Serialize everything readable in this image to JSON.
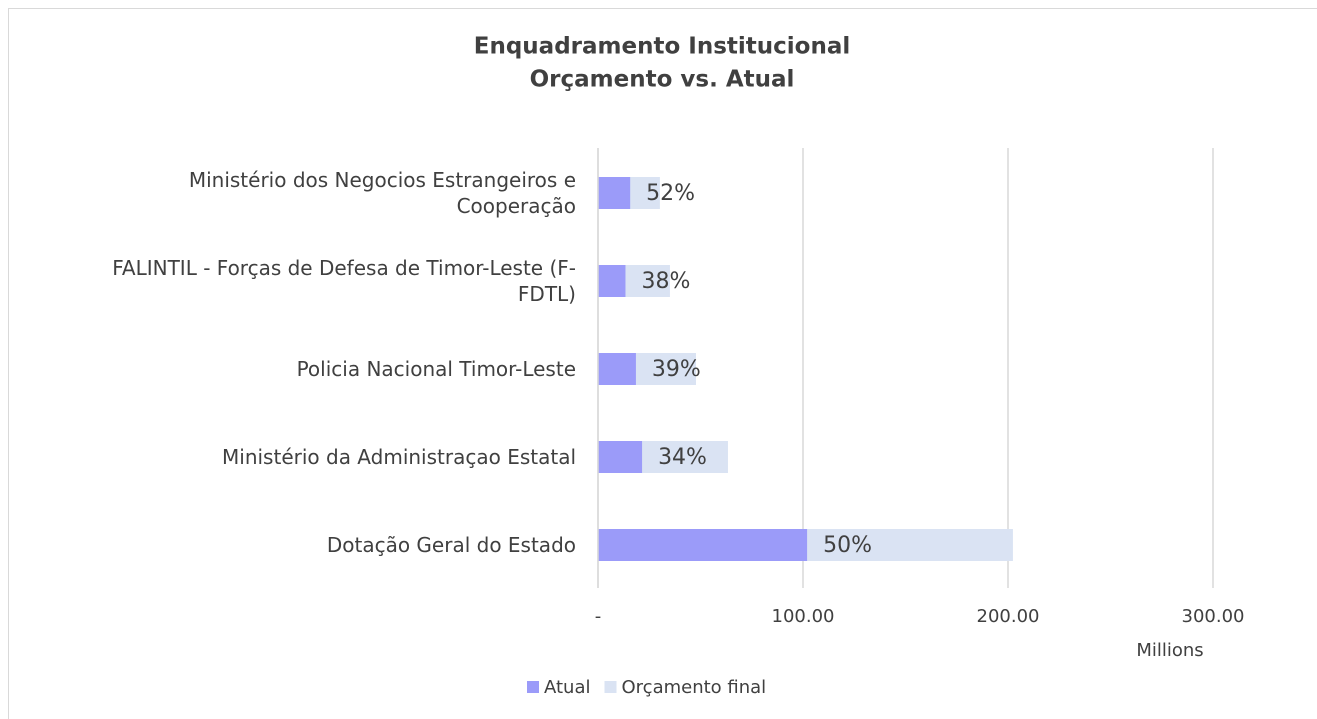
{
  "chart_data": {
    "type": "bar",
    "orientation": "horizontal",
    "title": [
      "Enquadramento Institucional",
      "Orçamento vs. Atual"
    ],
    "categories": [
      "Ministério dos Negocios Estrangeiros e Cooperação",
      "FALINTIL - Forças de Defesa de Timor-Leste (F-FDTL)",
      "Policia Nacional Timor-Leste",
      "Ministério da Administraçao Estatal",
      "Dotação Geral do Estado"
    ],
    "series": [
      {
        "name": "Atual",
        "color": "#9b9bf9",
        "values": [
          15.7,
          13.4,
          18.5,
          21.5,
          102
        ]
      },
      {
        "name": "Orçamento final",
        "color": "#dae3f3",
        "values": [
          30.2,
          35.1,
          47.8,
          63.4,
          202.4
        ]
      }
    ],
    "percent_labels": [
      "52%",
      "38%",
      "39%",
      "34%",
      "50%"
    ],
    "xlim": [
      0,
      340
    ],
    "xticks": [
      {
        "value": 0,
        "label": "-"
      },
      {
        "value": 100,
        "label": "100.00"
      },
      {
        "value": 200,
        "label": "200.00"
      },
      {
        "value": 300,
        "label": "300.00"
      }
    ],
    "x_unit": "Millions",
    "grid": true,
    "legend": "bottom"
  }
}
